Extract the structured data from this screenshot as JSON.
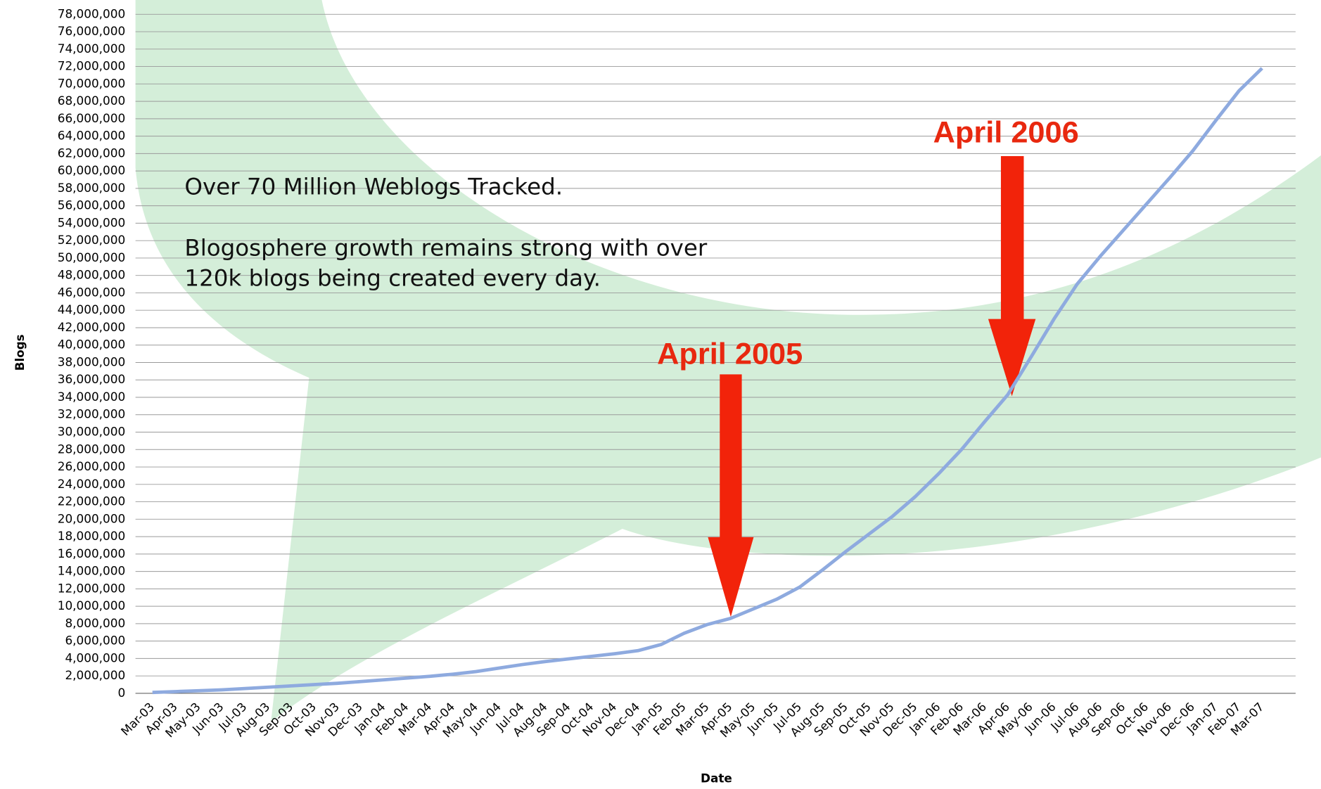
{
  "chart_data": {
    "type": "line",
    "x_label": "Date",
    "y_label": "Blogs",
    "categories": [
      "Mar-03",
      "Apr-03",
      "May-03",
      "Jun-03",
      "Jul-03",
      "Aug-03",
      "Sep-03",
      "Oct-03",
      "Nov-03",
      "Dec-03",
      "Jan-04",
      "Feb-04",
      "Mar-04",
      "Apr-04",
      "May-04",
      "Jun-04",
      "Jul-04",
      "Aug-04",
      "Sep-04",
      "Oct-04",
      "Nov-04",
      "Dec-04",
      "Jan-05",
      "Feb-05",
      "Mar-05",
      "Apr-05",
      "May-05",
      "Jun-05",
      "Jul-05",
      "Aug-05",
      "Sep-05",
      "Oct-05",
      "Nov-05",
      "Dec-05",
      "Jan-06",
      "Feb-06",
      "Mar-06",
      "Apr-06",
      "May-06",
      "Jun-06",
      "Jul-06",
      "Aug-06",
      "Sep-06",
      "Oct-06",
      "Nov-06",
      "Dec-06",
      "Jan-07",
      "Feb-07",
      "Mar-07"
    ],
    "values": [
      100000,
      200000,
      300000,
      400000,
      550000,
      700000,
      850000,
      1000000,
      1150000,
      1350000,
      1550000,
      1750000,
      1950000,
      2200000,
      2500000,
      2900000,
      3300000,
      3650000,
      3950000,
      4250000,
      4550000,
      4900000,
      5600000,
      6900000,
      7900000,
      8600000,
      9700000,
      10800000,
      12200000,
      14200000,
      16300000,
      18300000,
      20300000,
      22600000,
      25200000,
      28000000,
      31200000,
      34300000,
      38600000,
      43000000,
      47000000,
      50200000,
      53200000,
      56200000,
      59200000,
      62300000,
      65800000,
      69200000,
      71800000
    ],
    "color": "#8eaadf",
    "ylim": [
      0,
      78000000
    ],
    "yticks": [
      0,
      {
        "value": 2000000,
        "label": "2,000,000"
      },
      {
        "value": 4000000,
        "label": "4,000,000"
      },
      {
        "value": 6000000,
        "label": "6,000,000"
      },
      {
        "value": 8000000,
        "label": "8,000,000"
      },
      {
        "value": 10000000,
        "label": "10,000,000"
      },
      {
        "value": 12000000,
        "label": "12,000,000"
      },
      {
        "value": 14000000,
        "label": "14,000,000"
      },
      {
        "value": 16000000,
        "label": "16,000,000"
      },
      {
        "value": 18000000,
        "label": "18,000,000"
      },
      {
        "value": 20000000,
        "label": "20,000,000"
      },
      {
        "value": 22000000,
        "label": "22,000,000"
      },
      {
        "value": 24000000,
        "label": "24,000,000"
      },
      {
        "value": 26000000,
        "label": "26,000,000"
      },
      {
        "value": 28000000,
        "label": "28,000,000"
      },
      {
        "value": 30000000,
        "label": "30,000,000"
      },
      {
        "value": 32000000,
        "label": "32,000,000"
      },
      {
        "value": 34000000,
        "label": "34,000,000"
      },
      {
        "value": 36000000,
        "label": "36,000,000"
      },
      {
        "value": 38000000,
        "label": "38,000,000"
      },
      {
        "value": 40000000,
        "label": "40,000,000"
      },
      {
        "value": 42000000,
        "label": "42,000,000"
      },
      {
        "value": 44000000,
        "label": "44,000,000"
      },
      {
        "value": 46000000,
        "label": "46,000,000"
      },
      {
        "value": 48000000,
        "label": "48,000,000"
      },
      {
        "value": 50000000,
        "label": "50,000,000"
      },
      {
        "value": 52000000,
        "label": "52,000,000"
      },
      {
        "value": 54000000,
        "label": "54,000,000"
      },
      {
        "value": 56000000,
        "label": "56,000,000"
      },
      {
        "value": 58000000,
        "label": "58,000,000"
      },
      {
        "value": 60000000,
        "label": "60,000,000"
      },
      {
        "value": 62000000,
        "label": "62,000,000"
      },
      {
        "value": 64000000,
        "label": "64,000,000"
      },
      {
        "value": 66000000,
        "label": "66,000,000"
      },
      {
        "value": 68000000,
        "label": "68,000,000"
      },
      {
        "value": 70000000,
        "label": "70,000,000"
      },
      {
        "value": 72000000,
        "label": "72,000,000"
      },
      {
        "value": 74000000,
        "label": "74,000,000"
      },
      {
        "value": 76000000,
        "label": "76,000,000"
      },
      {
        "value": 78000000,
        "label": "78,000,000"
      }
    ],
    "grid": true,
    "annotations": [
      "Over 70 Million Weblogs Tracked.",
      "Blogosphere growth remains strong with over",
      "120k blogs being created every day."
    ],
    "callouts": [
      "April 2005",
      "April 2006"
    ]
  }
}
